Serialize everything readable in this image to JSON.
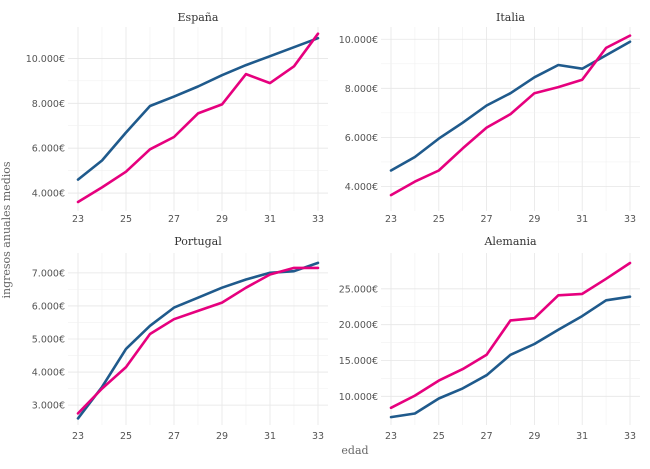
{
  "chart_data": {
    "type": "line",
    "xlabel": "edad",
    "ylabel": "ingresos anuales medios",
    "x": [
      23,
      24,
      25,
      26,
      27,
      28,
      29,
      30,
      31,
      32,
      33
    ],
    "x_ticks": [
      "23",
      "25",
      "27",
      "29",
      "31",
      "33"
    ],
    "colors": {
      "series_a": "#1f5a8c",
      "series_b": "#e6007e"
    },
    "panels": [
      {
        "title": "España",
        "ylim": [
          3200,
          11400
        ],
        "y_ticks": [
          4000,
          6000,
          8000,
          10000
        ],
        "y_tick_labels": [
          "4.000€",
          "6.000€",
          "8.000€",
          "10.000€"
        ],
        "series": [
          {
            "name": "serie_azul",
            "values": [
              4600,
              5450,
              6700,
              7880,
              8300,
              8750,
              9250,
              9700,
              10100,
              10500,
              10900
            ]
          },
          {
            "name": "serie_rosa",
            "values": [
              3600,
              4250,
              4950,
              5950,
              6500,
              7550,
              7950,
              9300,
              8900,
              9650,
              11100
            ]
          }
        ]
      },
      {
        "title": "Italia",
        "ylim": [
          3000,
          10500
        ],
        "y_ticks": [
          4000,
          6000,
          8000,
          10000
        ],
        "y_tick_labels": [
          "4.000€",
          "6.000€",
          "8.000€",
          "10.000€"
        ],
        "series": [
          {
            "name": "serie_azul",
            "values": [
              4650,
              5200,
              5950,
              6600,
              7300,
              7800,
              8450,
              8950,
              8800,
              9350,
              9900
            ]
          },
          {
            "name": "serie_rosa",
            "values": [
              3650,
              4200,
              4650,
              5550,
              6400,
              6950,
              7800,
              8050,
              8350,
              9650,
              10150
            ]
          }
        ]
      },
      {
        "title": "Portugal",
        "ylim": [
          2400,
          7600
        ],
        "y_ticks": [
          3000,
          4000,
          5000,
          6000,
          7000
        ],
        "y_tick_labels": [
          "3.000€",
          "4.000€",
          "5.000€",
          "6.000€",
          "7.000€"
        ],
        "series": [
          {
            "name": "serie_azul",
            "values": [
              2600,
              3550,
              4700,
              5400,
              5950,
              6250,
              6550,
              6800,
              7000,
              7050,
              7300
            ]
          },
          {
            "name": "serie_rosa",
            "values": [
              2750,
              3500,
              4150,
              5150,
              5600,
              5850,
              6100,
              6550,
              6950,
              7150,
              7150
            ]
          }
        ]
      },
      {
        "title": "Alemania",
        "ylim": [
          6000,
          30000
        ],
        "y_ticks": [
          10000,
          15000,
          20000,
          25000
        ],
        "y_tick_labels": [
          "10.000€",
          "15.000€",
          "20.000€",
          "25.000€"
        ],
        "series": [
          {
            "name": "serie_azul",
            "values": [
              7100,
              7600,
              9700,
              11100,
              12950,
              15800,
              17300,
              19300,
              21200,
              23400,
              23900
            ]
          },
          {
            "name": "serie_rosa",
            "values": [
              8400,
              10100,
              12200,
              13800,
              15800,
              20600,
              20900,
              24100,
              24300,
              26400,
              28600
            ]
          }
        ]
      }
    ]
  }
}
